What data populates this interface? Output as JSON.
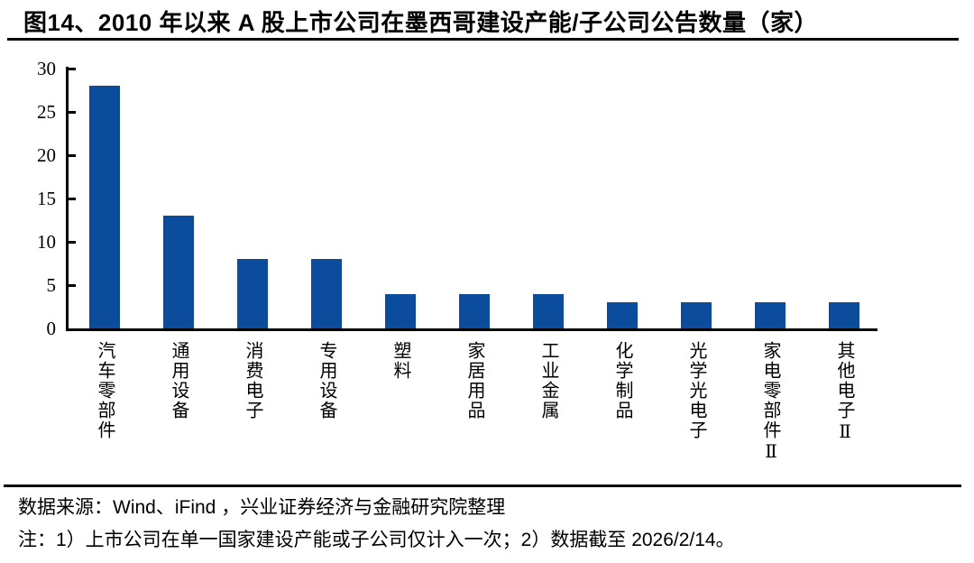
{
  "title": "图14、2010 年以来 A 股上市公司在墨西哥建设产能/子公司公告数量（家）",
  "chart_data": {
    "type": "bar",
    "title": "图14、2010 年以来 A 股上市公司在墨西哥建设产能/子公司公告数量（家）",
    "categories": [
      "汽车零部件",
      "通用设备",
      "消费电子",
      "专用设备",
      "塑料",
      "家居用品",
      "工业金属",
      "化学制品",
      "光学光电子",
      "家电零部件Ⅱ",
      "其他电子Ⅱ"
    ],
    "values": [
      28,
      13,
      8,
      8,
      4,
      4,
      4,
      3,
      3,
      3,
      3
    ],
    "xlabel": "",
    "ylabel": "",
    "ylim": [
      0,
      30
    ],
    "yticks": [
      0,
      5,
      10,
      15,
      20,
      25,
      30
    ],
    "bar_color": "#0B4D9C",
    "axis_color": "#000000",
    "grid": false,
    "legend_position": "none"
  },
  "footer": {
    "source": "数据来源：Wind、iFind ，兴业证券经济与金融研究院整理",
    "note": "注：1）上市公司在单一国家建设产能或子公司仅计入一次；2）数据截至 2026/2/14。"
  }
}
